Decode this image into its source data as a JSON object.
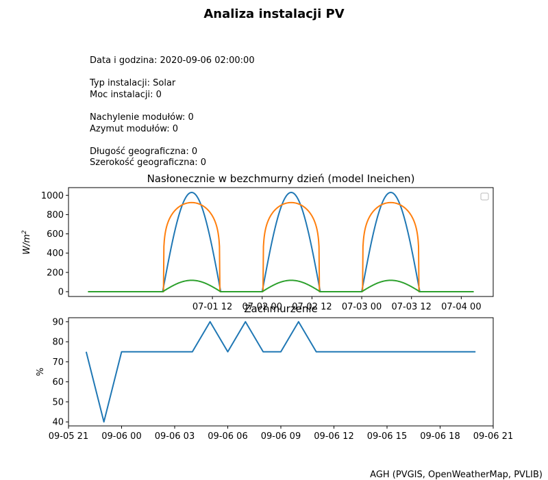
{
  "figure": {
    "suptitle": "Analiza instalacji PV",
    "info_lines": [
      "Data i godzina: 2020-09-06 02:00:00",
      "",
      "Typ instalacji: Solar",
      "Moc instalacji: 0",
      "",
      "Nachylenie modułów: 0",
      "Azymut modułów: 0",
      "",
      "Długość geograficzna: 0",
      "Szerokość geograficzna: 0"
    ],
    "footer": "AGH (PVGIS, OpenWeatherMap, PVLIB)"
  },
  "chart_data": [
    {
      "type": "line",
      "title": "Nasłonecznie w bezchmurny dzień (model Ineichen)",
      "xlabel": "",
      "ylabel": "W/m²",
      "ylabel_base": "W/m",
      "ylabel_sup": "2",
      "x_hours_range": [
        -18,
        75
      ],
      "xlim_hours": [
        -22.7,
        79.7
      ],
      "ylim": [
        -50,
        1080
      ],
      "yticks": [
        0,
        200,
        400,
        600,
        800,
        1000
      ],
      "xticks": [
        {
          "hours": 12,
          "label": "07-01 12"
        },
        {
          "hours": 24,
          "label": "07-02 00"
        },
        {
          "hours": 36,
          "label": "07-02 12"
        },
        {
          "hours": 48,
          "label": "07-03 00"
        },
        {
          "hours": 60,
          "label": "07-03 12"
        },
        {
          "hours": 72,
          "label": "07-04 00"
        }
      ],
      "legend": "top-right (empty)",
      "series": [
        {
          "color": "#1f77b4",
          "model": "sine",
          "peak": 1030,
          "sunrise": 0.0,
          "sunset": 14.0,
          "exponent": 1.0
        },
        {
          "color": "#ff7f0e",
          "model": "sine",
          "peak": 925,
          "sunrise": 0.2,
          "sunset": 13.8,
          "exponent": 0.18
        },
        {
          "color": "#2ca02c",
          "model": "sine",
          "peak": 118,
          "sunrise": 0.0,
          "sunset": 14.0,
          "exponent": 1.0
        }
      ],
      "day_starts_hours": [
        0,
        24,
        48
      ]
    },
    {
      "type": "line",
      "title": "Zachmurzenie",
      "xlabel": "",
      "ylabel": "%",
      "ylim": [
        38,
        92
      ],
      "xlim_hours": [
        -3.0,
        21.0
      ],
      "yticks": [
        40,
        50,
        60,
        70,
        80,
        90
      ],
      "xticks": [
        {
          "hours": -3,
          "label": "09-05 21"
        },
        {
          "hours": 0,
          "label": "09-06 00"
        },
        {
          "hours": 3,
          "label": "09-06 03"
        },
        {
          "hours": 6,
          "label": "09-06 06"
        },
        {
          "hours": 9,
          "label": "09-06 09"
        },
        {
          "hours": 12,
          "label": "09-06 12"
        },
        {
          "hours": 15,
          "label": "09-06 15"
        },
        {
          "hours": 18,
          "label": "09-06 18"
        },
        {
          "hours": 21,
          "label": "09-06 21"
        }
      ],
      "series": [
        {
          "color": "#1f77b4",
          "x_hours": [
            -2,
            -1,
            0,
            1,
            2,
            3,
            4,
            5,
            6,
            7,
            8,
            9,
            10,
            11,
            12,
            13,
            14,
            15,
            16,
            17,
            18,
            19,
            20
          ],
          "values": [
            75,
            40,
            75,
            75,
            75,
            75,
            75,
            90,
            75,
            90,
            75,
            75,
            90,
            75,
            75,
            75,
            75,
            75,
            75,
            75,
            75,
            75,
            75
          ]
        }
      ]
    }
  ]
}
